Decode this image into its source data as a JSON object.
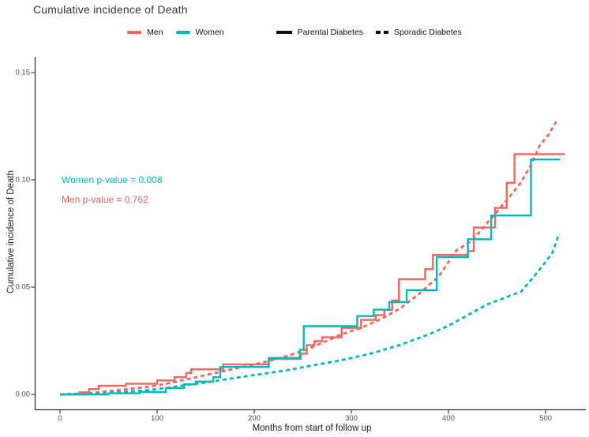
{
  "title": "Cumulative incidence of Death",
  "legend": {
    "items": [
      {
        "label": "Men",
        "color": "#F4655D",
        "style": "solid-line"
      },
      {
        "label": "Women",
        "color": "#00B8BE",
        "style": "solid-line"
      },
      {
        "label": "Parental Diabetes",
        "color": "#111111",
        "style": "solid-line"
      },
      {
        "label": "Sporadic Diabetes",
        "color": "#111111",
        "style": "dashed-line"
      }
    ]
  },
  "annotations": [
    {
      "id": "women-p-value",
      "text": "Women p-value = 0.008",
      "color": "#00B8BE"
    },
    {
      "id": "men-p-value",
      "text": "Men p-value = 0.762",
      "color": "#F4655D"
    }
  ],
  "chart_data": {
    "type": "line",
    "subtype": "cumulative-incidence-step-curves",
    "title": "Cumulative incidence of Death",
    "xlabel": "Months from start of follow up",
    "ylabel": "Cumulative incidence of Death",
    "xlim": [
      -10,
      545
    ],
    "ylim": [
      0,
      0.158
    ],
    "x_ticks": [
      0,
      100,
      200,
      300,
      400,
      500
    ],
    "y_ticks": [
      0,
      0.05,
      0.1,
      0.15
    ],
    "y_tick_labels": [
      "0.00",
      "0.05",
      "0.10",
      "0.15"
    ],
    "grid": false,
    "legend_position": "top",
    "series": [
      {
        "id": "men-sporadic",
        "name": "Men - Sporadic Diabetes",
        "sex": "Men",
        "diabetes": "Sporadic",
        "color": "#F4655D",
        "dashed": true,
        "draw": "line",
        "x": [
          0,
          30,
          50,
          70,
          90,
          110,
          133,
          160,
          188,
          215,
          235,
          253,
          270,
          290,
          310,
          330,
          350,
          370,
          390,
          408,
          425,
          440,
          461,
          475,
          485,
          494,
          503,
          512
        ],
        "y": [
          0,
          0.0005,
          0.0015,
          0.0025,
          0.0035,
          0.005,
          0.0073,
          0.01,
          0.0128,
          0.0155,
          0.018,
          0.0208,
          0.024,
          0.028,
          0.031,
          0.035,
          0.04,
          0.047,
          0.055,
          0.067,
          0.072,
          0.08,
          0.091,
          0.099,
          0.107,
          0.116,
          0.121,
          0.128
        ]
      },
      {
        "id": "women-sporadic",
        "name": "Women - Sporadic Diabetes",
        "sex": "Women",
        "diabetes": "Sporadic",
        "color": "#00B8BE",
        "dashed": true,
        "draw": "line",
        "x": [
          0,
          40,
          60,
          90,
          110,
          130,
          150,
          170,
          200,
          230,
          260,
          290,
          320,
          350,
          380,
          400,
          420,
          440,
          458,
          475,
          491,
          507,
          514
        ],
        "y": [
          0,
          0.0005,
          0.001,
          0.002,
          0.003,
          0.0044,
          0.0055,
          0.007,
          0.009,
          0.011,
          0.0135,
          0.016,
          0.019,
          0.023,
          0.028,
          0.032,
          0.037,
          0.042,
          0.045,
          0.048,
          0.0565,
          0.066,
          0.075
        ]
      },
      {
        "id": "men-parental",
        "name": "Men - Parental Diabetes",
        "sex": "Men",
        "diabetes": "Parental",
        "color": "#F4655D",
        "dashed": false,
        "draw": "step",
        "x": [
          0,
          20,
          30,
          40,
          68,
          100,
          118,
          130,
          135,
          168,
          215,
          248,
          254,
          262,
          270,
          290,
          310,
          325,
          334,
          342,
          349,
          376,
          384,
          420,
          426,
          448,
          460,
          468,
          520
        ],
        "y": [
          0,
          0.001,
          0.0025,
          0.004,
          0.005,
          0.0065,
          0.008,
          0.01,
          0.0117,
          0.014,
          0.0165,
          0.019,
          0.023,
          0.0248,
          0.0266,
          0.031,
          0.0347,
          0.037,
          0.0394,
          0.0438,
          0.0537,
          0.0584,
          0.065,
          0.0668,
          0.0778,
          0.0869,
          0.0986,
          0.112,
          0.112
        ]
      },
      {
        "id": "women-parental",
        "name": "Women - Parental Diabetes",
        "sex": "Women",
        "diabetes": "Parental",
        "color": "#00B8BE",
        "dashed": false,
        "draw": "step",
        "x": [
          0,
          50,
          82,
          109,
          128,
          140,
          158,
          165,
          215,
          247,
          251,
          306,
          323,
          339,
          357,
          388,
          420,
          444,
          485,
          515
        ],
        "y": [
          0,
          0.0005,
          0.0011,
          0.003,
          0.0047,
          0.006,
          0.008,
          0.0128,
          0.017,
          0.0208,
          0.0318,
          0.0365,
          0.0395,
          0.043,
          0.0486,
          0.064,
          0.0723,
          0.0834,
          0.1095,
          0.1095
        ]
      }
    ],
    "annotations": [
      {
        "text": "Women p-value = 0.008",
        "color": "#00B8BE",
        "x_months": 5,
        "y_value": 0.099
      },
      {
        "text": "Men p-value = 0.762",
        "color": "#F4655D",
        "x_months": 5,
        "y_value": 0.09
      }
    ]
  }
}
